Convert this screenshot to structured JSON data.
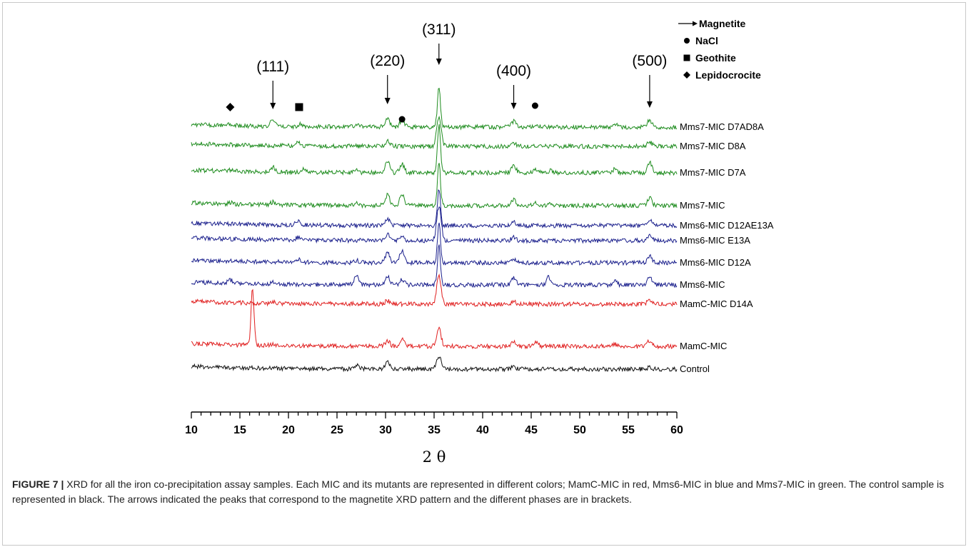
{
  "chart_data": {
    "type": "line",
    "xlabel": "2 θ",
    "xlim": [
      10,
      60
    ],
    "x_ticks": [
      "10",
      "15",
      "20",
      "25",
      "30",
      "35",
      "40",
      "45",
      "50",
      "55",
      "60"
    ],
    "series": [
      {
        "name": "Mms7-MIC D7AD8A",
        "color": "#1e8c1e",
        "peaks": [
          [
            14,
            2
          ],
          [
            18.4,
            10
          ],
          [
            21.2,
            3
          ],
          [
            27,
            3
          ],
          [
            30.2,
            12
          ],
          [
            31.7,
            10
          ],
          [
            35.5,
            56
          ],
          [
            43.2,
            8
          ],
          [
            45.5,
            3
          ],
          [
            53.6,
            4
          ],
          [
            57.2,
            10
          ]
        ]
      },
      {
        "name": "Mms7-MIC D8A",
        "color": "#1e8c1e",
        "peaks": [
          [
            21,
            5
          ],
          [
            30.2,
            8
          ],
          [
            35.5,
            42
          ],
          [
            43.2,
            5
          ],
          [
            57.2,
            7
          ]
        ]
      },
      {
        "name": "Mms7-MIC D7A",
        "color": "#1e8c1e",
        "peaks": [
          [
            14,
            2
          ],
          [
            18.4,
            7
          ],
          [
            21.5,
            4
          ],
          [
            27,
            4
          ],
          [
            30.2,
            16
          ],
          [
            31.7,
            12
          ],
          [
            35.5,
            66
          ],
          [
            43.2,
            10
          ],
          [
            45.5,
            5
          ],
          [
            47,
            3
          ],
          [
            53.6,
            5
          ],
          [
            57.2,
            15
          ]
        ]
      },
      {
        "name": "Mms7-MIC",
        "color": "#1e8c1e",
        "peaks": [
          [
            14,
            2
          ],
          [
            18.4,
            4
          ],
          [
            27,
            4
          ],
          [
            30.2,
            15
          ],
          [
            31.7,
            15
          ],
          [
            35.5,
            60
          ],
          [
            43.2,
            9
          ],
          [
            45.5,
            5
          ],
          [
            47,
            3
          ],
          [
            57.2,
            11
          ]
        ]
      },
      {
        "name": "Mms6-MIC D12AE13A",
        "color": "#1a1f8c",
        "peaks": [
          [
            21,
            7
          ],
          [
            30.2,
            10
          ],
          [
            35.5,
            52
          ],
          [
            43.2,
            6
          ],
          [
            57.2,
            9
          ]
        ]
      },
      {
        "name": "Mms6-MIC E13A",
        "color": "#1a1f8c",
        "peaks": [
          [
            21,
            4
          ],
          [
            30.2,
            8
          ],
          [
            31.7,
            5
          ],
          [
            35.5,
            48
          ],
          [
            43.2,
            5
          ],
          [
            57.2,
            7
          ]
        ]
      },
      {
        "name": "Mms6-MIC D12A",
        "color": "#1a1f8c",
        "peaks": [
          [
            21,
            4
          ],
          [
            27,
            3
          ],
          [
            30.2,
            14
          ],
          [
            31.7,
            17
          ],
          [
            35.5,
            56
          ],
          [
            43.2,
            6
          ],
          [
            57.2,
            9
          ]
        ]
      },
      {
        "name": "Mms6-MIC",
        "color": "#1a1f8c",
        "peaks": [
          [
            14,
            5
          ],
          [
            18.4,
            3
          ],
          [
            27,
            14
          ],
          [
            30.2,
            12
          ],
          [
            31.7,
            8
          ],
          [
            35.5,
            54
          ],
          [
            43.2,
            10
          ],
          [
            46.8,
            11
          ],
          [
            53.6,
            5
          ],
          [
            57.2,
            12
          ]
        ]
      },
      {
        "name": "MamC-MIC D14A",
        "color": "#e01e1e",
        "peaks": [
          [
            18.4,
            2
          ],
          [
            30.2,
            5
          ],
          [
            35.5,
            40
          ],
          [
            43.2,
            4
          ],
          [
            57.2,
            6
          ]
        ]
      },
      {
        "name": "MamC-MIC",
        "color": "#e01e1e",
        "peaks": [
          [
            16.3,
            80
          ],
          [
            18.4,
            2
          ],
          [
            30.2,
            8
          ],
          [
            31.7,
            9
          ],
          [
            35.5,
            24
          ],
          [
            43.2,
            6
          ],
          [
            45.5,
            5
          ],
          [
            53.6,
            3
          ],
          [
            57.2,
            8
          ]
        ]
      },
      {
        "name": "Control",
        "color": "#111111",
        "peaks": [
          [
            13,
            2
          ],
          [
            27,
            5
          ],
          [
            30.2,
            9
          ],
          [
            35.5,
            18
          ],
          [
            43.2,
            3
          ],
          [
            57.2,
            3
          ]
        ]
      }
    ],
    "phase_labels": [
      {
        "label": "(111)",
        "x": 18.4
      },
      {
        "label": "(220)",
        "x": 30.2
      },
      {
        "label": "(311)",
        "x": 35.5
      },
      {
        "label": "(400)",
        "x": 43.2
      },
      {
        "label": "(500)",
        "x": 57.2
      }
    ],
    "phase_markers": [
      {
        "phase": "Lepidocrocite",
        "x": 14.0
      },
      {
        "phase": "Geothite",
        "x": 21.1
      },
      {
        "phase": "NaCl",
        "x": 31.7
      },
      {
        "phase": "NaCl",
        "x": 45.4
      }
    ],
    "legend": [
      {
        "symbol": "arrow",
        "label": "Magnetite"
      },
      {
        "symbol": "circle",
        "label": "NaCl"
      },
      {
        "symbol": "square",
        "label": "Geothite"
      },
      {
        "symbol": "diamond",
        "label": "Lepidocrocite"
      }
    ],
    "legend_position": "top-right",
    "grid": false
  },
  "caption": {
    "label": "FIGURE 7 |",
    "text": " XRD for all the iron co-precipitation assay samples. Each MIC and its mutants are represented in different colors; MamC-MIC in red, Mms6-MIC in blue and Mms7-MIC in green. The control sample is represented in black. The arrows indicated the peaks that correspond to the magnetite XRD pattern and the different phases are in brackets."
  }
}
